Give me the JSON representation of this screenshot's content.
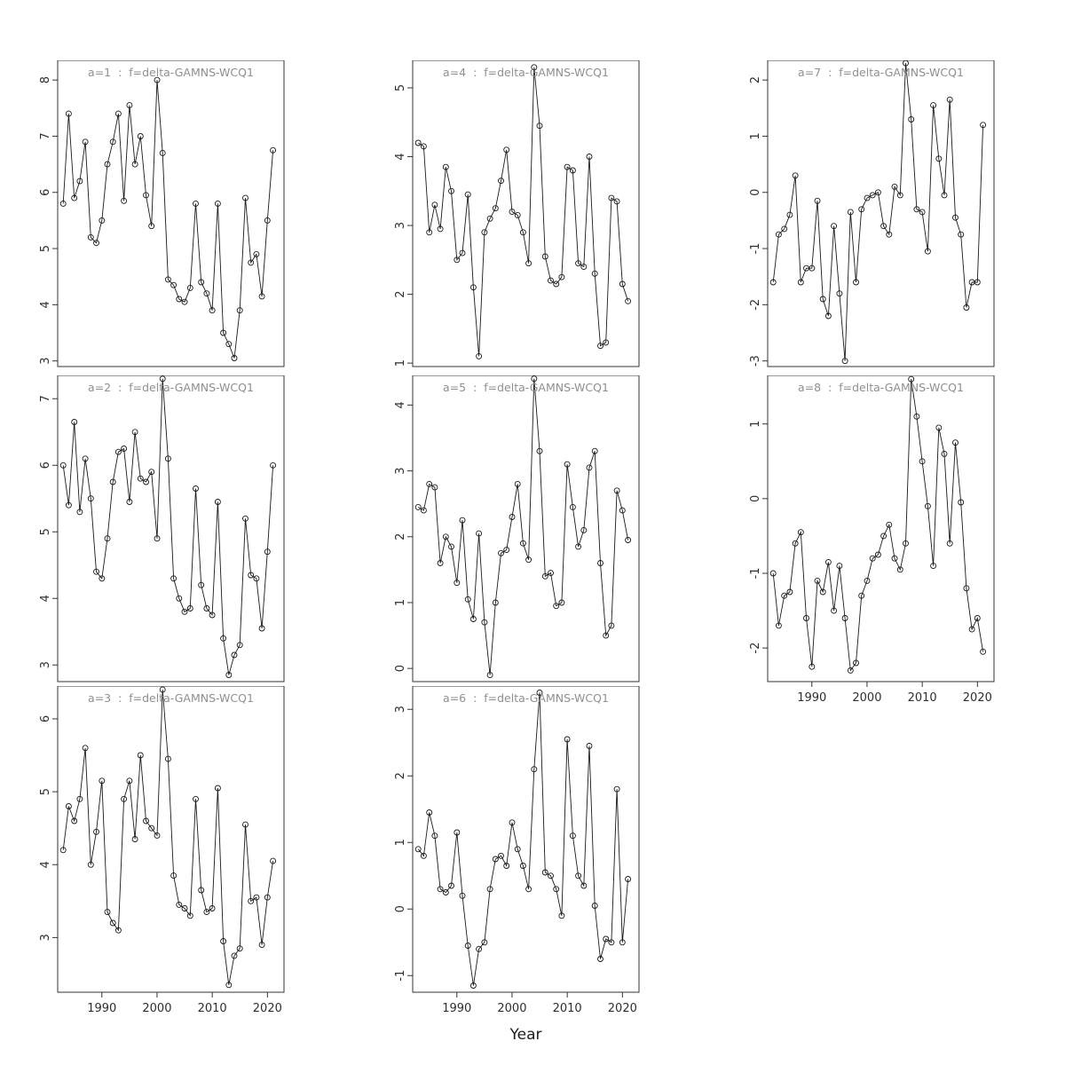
{
  "figure": {
    "xlabel": "Year",
    "x_ticks": [
      1990,
      2000,
      2010,
      2020
    ],
    "xlim": [
      1982,
      2023
    ],
    "years": [
      1983,
      1984,
      1985,
      1986,
      1987,
      1988,
      1989,
      1990,
      1991,
      1992,
      1993,
      1994,
      1995,
      1996,
      1997,
      1998,
      1999,
      2000,
      2001,
      2002,
      2003,
      2004,
      2005,
      2006,
      2007,
      2008,
      2009,
      2010,
      2011,
      2012,
      2013,
      2014,
      2015,
      2016,
      2017,
      2018,
      2019,
      2020,
      2021
    ],
    "title_color": "#8f8f8f",
    "line_color": "#1a1a1a",
    "axis_color": "#333333",
    "background": "#ffffff"
  },
  "chart_data": [
    {
      "type": "line+scatter",
      "title": "a=1  :  f=delta-GAMNS-WCQ1",
      "ylim": [
        2.9,
        8.35
      ],
      "yticks": [
        3,
        4,
        5,
        6,
        7,
        8
      ],
      "show_x_axis": false,
      "values": [
        5.8,
        7.4,
        5.9,
        6.2,
        6.9,
        5.2,
        5.1,
        5.5,
        6.5,
        6.9,
        7.4,
        5.85,
        7.55,
        6.5,
        7.0,
        5.95,
        5.4,
        8.0,
        6.7,
        4.45,
        4.35,
        4.1,
        4.05,
        4.3,
        5.8,
        4.4,
        4.2,
        3.9,
        5.8,
        3.5,
        3.3,
        3.05,
        3.9,
        5.9,
        4.75,
        4.9,
        4.15,
        5.5,
        6.75
      ]
    },
    {
      "type": "line+scatter",
      "title": "a=2  :  f=delta-GAMNS-WCQ1",
      "ylim": [
        2.75,
        7.35
      ],
      "yticks": [
        3,
        4,
        5,
        6,
        7
      ],
      "show_x_axis": false,
      "values": [
        6.0,
        5.4,
        6.65,
        5.3,
        6.1,
        5.5,
        4.4,
        4.3,
        4.9,
        5.75,
        6.2,
        6.25,
        5.45,
        6.5,
        5.8,
        5.75,
        5.9,
        4.9,
        7.3,
        6.1,
        4.3,
        4.0,
        3.8,
        3.85,
        5.65,
        4.2,
        3.85,
        3.75,
        5.45,
        3.4,
        2.85,
        3.15,
        3.3,
        5.2,
        4.35,
        4.3,
        3.55,
        4.7,
        6.0
      ]
    },
    {
      "type": "line+scatter",
      "title": "a=3  :  f=delta-GAMNS-WCQ1",
      "ylim": [
        2.25,
        6.45
      ],
      "yticks": [
        3,
        4,
        5,
        6
      ],
      "show_x_axis": true,
      "values": [
        4.2,
        4.8,
        4.6,
        4.9,
        5.6,
        4.0,
        4.45,
        5.15,
        3.35,
        3.2,
        3.1,
        4.9,
        5.15,
        4.35,
        5.5,
        4.6,
        4.5,
        4.4,
        6.4,
        5.45,
        3.85,
        3.45,
        3.4,
        3.3,
        4.9,
        3.65,
        3.35,
        3.4,
        5.05,
        2.95,
        2.35,
        2.75,
        2.85,
        4.55,
        3.5,
        3.55,
        2.9,
        3.55,
        4.05
      ]
    },
    {
      "type": "line+scatter",
      "title": "a=4  :  f=delta-GAMNS-WCQ1",
      "ylim": [
        0.95,
        5.4
      ],
      "yticks": [
        1,
        2,
        3,
        4,
        5
      ],
      "show_x_axis": false,
      "values": [
        4.2,
        4.15,
        2.9,
        3.3,
        2.95,
        3.85,
        3.5,
        2.5,
        2.6,
        3.45,
        2.1,
        1.1,
        2.9,
        3.1,
        3.25,
        3.65,
        4.1,
        3.2,
        3.15,
        2.9,
        2.45,
        5.3,
        4.45,
        2.55,
        2.2,
        2.15,
        2.25,
        3.85,
        3.8,
        2.45,
        2.4,
        4.0,
        2.3,
        1.25,
        1.3,
        3.4,
        3.35,
        2.15,
        1.9
      ]
    },
    {
      "type": "line+scatter",
      "title": "a=5  :  f=delta-GAMNS-WCQ1",
      "ylim": [
        -0.2,
        4.45
      ],
      "yticks": [
        0,
        1,
        2,
        3,
        4
      ],
      "show_x_axis": false,
      "values": [
        2.45,
        2.4,
        2.8,
        2.75,
        1.6,
        2.0,
        1.85,
        1.3,
        2.25,
        1.05,
        0.75,
        2.05,
        0.7,
        -0.1,
        1.0,
        1.75,
        1.8,
        2.3,
        2.8,
        1.9,
        1.65,
        4.4,
        3.3,
        1.4,
        1.45,
        0.95,
        1.0,
        3.1,
        2.45,
        1.85,
        2.1,
        3.05,
        3.3,
        1.6,
        0.5,
        0.65,
        2.7,
        2.4,
        1.95
      ]
    },
    {
      "type": "line+scatter",
      "title": "a=6  :  f=delta-GAMNS-WCQ1",
      "ylim": [
        -1.25,
        3.35
      ],
      "yticks": [
        -1,
        0,
        1,
        2,
        3
      ],
      "show_x_axis": true,
      "values": [
        0.9,
        0.8,
        1.45,
        1.1,
        0.3,
        0.25,
        0.35,
        1.15,
        0.2,
        -0.55,
        -1.15,
        -0.6,
        -0.5,
        0.3,
        0.75,
        0.8,
        0.65,
        1.3,
        0.9,
        0.65,
        0.3,
        2.1,
        3.25,
        0.55,
        0.5,
        0.3,
        -0.1,
        2.55,
        1.1,
        0.5,
        0.35,
        2.45,
        0.05,
        -0.75,
        -0.45,
        -0.5,
        1.8,
        -0.5,
        0.45
      ]
    },
    {
      "type": "line+scatter",
      "title": "a=7  :  f=delta-GAMNS-WCQ1",
      "ylim": [
        -3.1,
        2.35
      ],
      "yticks": [
        -3,
        -2,
        -1,
        0,
        1,
        2
      ],
      "show_x_axis": false,
      "values": [
        -1.6,
        -0.75,
        -0.65,
        -0.4,
        0.3,
        -1.6,
        -1.35,
        -1.35,
        -0.15,
        -1.9,
        -2.2,
        -0.6,
        -1.8,
        -3.0,
        -0.35,
        -1.6,
        -0.3,
        -0.1,
        -0.05,
        0.0,
        -0.6,
        -0.75,
        0.1,
        -0.05,
        2.3,
        1.3,
        -0.3,
        -0.35,
        -1.05,
        1.55,
        0.6,
        -0.05,
        1.65,
        -0.45,
        -0.75,
        -2.05,
        -1.6,
        -1.6,
        1.2
      ]
    },
    {
      "type": "line+scatter",
      "title": "a=8  :  f=delta-GAMNS-WCQ1",
      "ylim": [
        -2.45,
        1.65
      ],
      "yticks": [
        -2,
        -1,
        0,
        1
      ],
      "show_x_axis": true,
      "values": [
        -1.0,
        -1.7,
        -1.3,
        -1.25,
        -0.6,
        -0.45,
        -1.6,
        -2.25,
        -1.1,
        -1.25,
        -0.85,
        -1.5,
        -0.9,
        -1.6,
        -2.3,
        -2.2,
        -1.3,
        -1.1,
        -0.8,
        -0.75,
        -0.5,
        -0.35,
        -0.8,
        -0.95,
        -0.6,
        1.6,
        1.1,
        0.5,
        -0.1,
        -0.9,
        0.95,
        0.6,
        -0.6,
        0.75,
        -0.05,
        -1.2,
        -1.75,
        -1.6,
        -2.05
      ]
    }
  ]
}
